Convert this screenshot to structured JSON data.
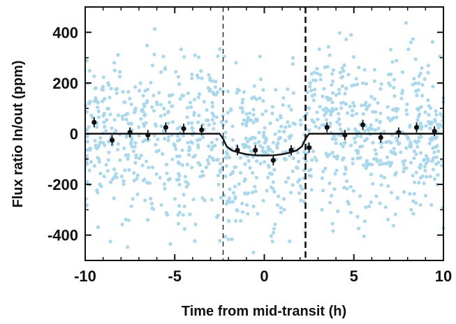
{
  "chart_data": {
    "type": "scatter",
    "title": "",
    "xlabel": "Time from mid-transit (h)",
    "ylabel": "Flux ratio In/out (ppm)",
    "xlim": [
      -10,
      10
    ],
    "ylim": [
      -500,
      500
    ],
    "x_ticks": [
      -10,
      -5,
      0,
      5,
      10
    ],
    "x_tick_labels": [
      "-10",
      "-5",
      "0",
      "5",
      "10"
    ],
    "y_ticks": [
      -400,
      -200,
      0,
      200,
      400
    ],
    "y_tick_labels": [
      "-400",
      "-200",
      "0",
      "200",
      "400"
    ],
    "grid": false,
    "legend": "none",
    "colors": {
      "raw_points": "#a8d8ee",
      "binned": "#111111",
      "model": "#111111",
      "axes": "#111111"
    },
    "vertical_lines": [
      {
        "x": -2.3,
        "style": "thin-dashed"
      },
      {
        "x": 2.3,
        "style": "thick-dashed"
      }
    ],
    "series": [
      {
        "kind": "binned-with-errorbars",
        "x": [
          -9.5,
          -8.5,
          -7.5,
          -6.5,
          -5.5,
          -4.5,
          -3.5,
          -1.5,
          -0.5,
          0.5,
          1.5,
          2.5,
          3.5,
          4.5,
          5.5,
          6.5,
          7.5,
          8.5,
          9.5
        ],
        "y": [
          45,
          -25,
          5,
          -5,
          25,
          20,
          15,
          -65,
          -65,
          -105,
          -65,
          -55,
          25,
          -5,
          35,
          -15,
          5,
          25,
          10
        ],
        "err": [
          20,
          20,
          20,
          20,
          20,
          20,
          20,
          20,
          20,
          20,
          20,
          20,
          20,
          20,
          20,
          20,
          20,
          20,
          20
        ]
      },
      {
        "kind": "model-curve",
        "x": [
          -10,
          -2.5,
          -2.3,
          -2.1,
          -1.8,
          -1.4,
          -1.0,
          -0.5,
          0,
          0.5,
          1.0,
          1.4,
          1.8,
          2.1,
          2.3,
          2.5,
          10
        ],
        "y": [
          0,
          0,
          -20,
          -50,
          -66,
          -75,
          -81,
          -85,
          -86,
          -85,
          -81,
          -75,
          -66,
          -50,
          -20,
          0,
          0
        ]
      }
    ]
  }
}
